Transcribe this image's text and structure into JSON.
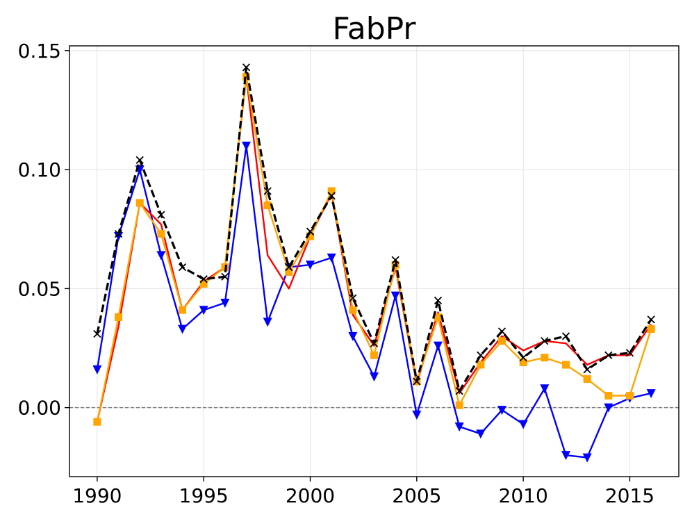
{
  "chart_data": {
    "type": "line",
    "title": "FabPr",
    "xlabel": "",
    "ylabel": "",
    "x": [
      1990,
      1991,
      1992,
      1993,
      1994,
      1995,
      1996,
      1997,
      1998,
      1999,
      2000,
      2001,
      2002,
      2003,
      2004,
      2005,
      2006,
      2007,
      2008,
      2009,
      2010,
      2011,
      2012,
      2013,
      2014,
      2015,
      2016
    ],
    "xlim": [
      1988.7,
      2017.3
    ],
    "ylim": [
      -0.029,
      0.152
    ],
    "xticks": [
      1990,
      1995,
      2000,
      2005,
      2010,
      2015
    ],
    "xtick_labels": [
      "1990",
      "1995",
      "2000",
      "2005",
      "2010",
      "2015"
    ],
    "yticks": [
      0.0,
      0.05,
      0.1,
      0.15
    ],
    "ytick_labels": [
      "0.00",
      "0.05",
      "0.10",
      "0.15"
    ],
    "grid": true,
    "reference_line": {
      "y": 0.0,
      "style": "dashed",
      "color": "#808080"
    },
    "series": [
      {
        "color": "#0000ff",
        "marker": "triangle-down",
        "line_style": "solid",
        "values": [
          0.016,
          0.072,
          0.1,
          0.064,
          0.033,
          0.041,
          0.044,
          0.11,
          0.036,
          0.059,
          0.06,
          0.063,
          0.03,
          0.013,
          0.047,
          -0.003,
          0.026,
          -0.008,
          -0.011,
          -0.001,
          -0.007,
          0.008,
          -0.02,
          -0.021,
          0.0,
          0.004,
          0.006
        ]
      },
      {
        "color": "#ff0000",
        "marker": "none",
        "line_style": "solid",
        "values": [
          -0.006,
          0.034,
          0.086,
          0.077,
          0.041,
          0.053,
          0.059,
          0.139,
          0.064,
          0.05,
          0.072,
          0.09,
          0.039,
          0.026,
          0.059,
          0.01,
          0.04,
          0.006,
          0.019,
          0.03,
          0.024,
          0.028,
          0.027,
          0.018,
          0.022,
          0.022,
          0.035
        ]
      },
      {
        "color": "#ffa500",
        "marker": "square",
        "line_style": "solid",
        "values": [
          -0.006,
          0.038,
          0.086,
          0.073,
          0.041,
          0.052,
          0.059,
          0.139,
          0.085,
          0.057,
          0.072,
          0.091,
          0.041,
          0.022,
          0.06,
          0.011,
          0.038,
          0.001,
          0.018,
          0.028,
          0.019,
          0.021,
          0.018,
          0.012,
          0.005,
          0.005,
          0.033
        ]
      },
      {
        "color": "#000000",
        "marker": "x",
        "line_style": "dashed",
        "values": [
          0.031,
          0.073,
          0.104,
          0.081,
          0.059,
          0.054,
          0.055,
          0.143,
          0.091,
          0.059,
          0.074,
          0.089,
          0.046,
          0.027,
          0.062,
          0.011,
          0.045,
          0.007,
          0.022,
          0.032,
          0.021,
          0.028,
          0.03,
          0.016,
          0.022,
          0.023,
          0.037
        ]
      }
    ]
  }
}
